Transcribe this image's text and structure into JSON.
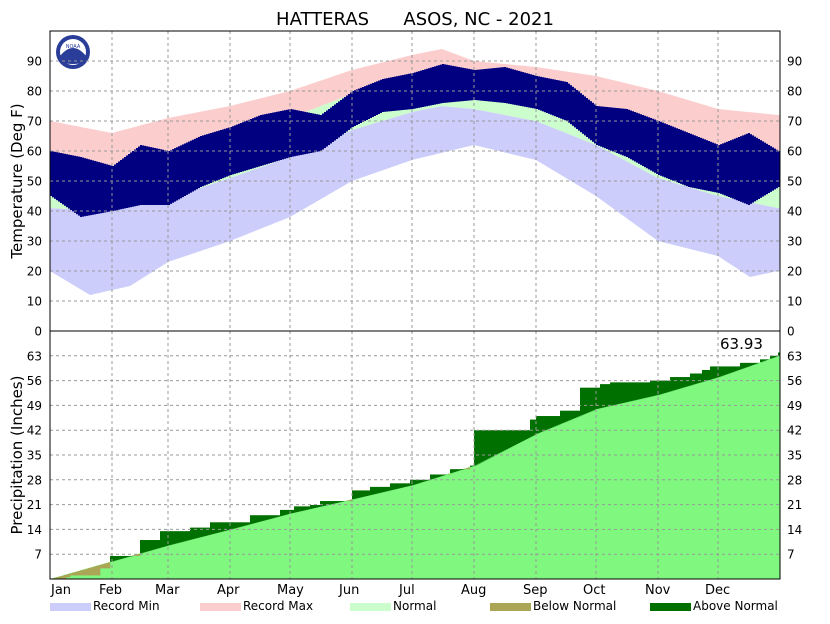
{
  "chart_data": {
    "type": "area",
    "title": "HATTERAS      ASOS, NC - 2021",
    "months": [
      "Jan",
      "Feb",
      "Mar",
      "Apr",
      "May",
      "Jun",
      "Jul",
      "Aug",
      "Sep",
      "Oct",
      "Nov",
      "Dec"
    ],
    "month_start_day": [
      0,
      31,
      59,
      90,
      120,
      151,
      181,
      212,
      243,
      273,
      304,
      334
    ],
    "days_in_year": 365,
    "temperature": {
      "ylabel": "Temperature (Deg F)",
      "ylim": [
        0,
        100
      ],
      "ticks": [
        0,
        10,
        20,
        30,
        40,
        50,
        60,
        70,
        80,
        90
      ],
      "grid": true,
      "record_max": {
        "day": [
          0,
          31,
          59,
          90,
          120,
          151,
          181,
          196,
          212,
          243,
          273,
          304,
          334,
          364
        ],
        "value": [
          70,
          66,
          71,
          75,
          80,
          87,
          92,
          94,
          90,
          88,
          85,
          80,
          74,
          72
        ]
      },
      "record_min": {
        "day": [
          0,
          20,
          40,
          59,
          90,
          120,
          151,
          181,
          212,
          243,
          273,
          304,
          334,
          350,
          364
        ],
        "value": [
          20,
          12,
          15,
          23,
          30,
          38,
          50,
          57,
          62,
          57,
          45,
          30,
          25,
          18,
          20
        ]
      },
      "normal_high": {
        "day": [
          0,
          31,
          59,
          90,
          120,
          151,
          181,
          196,
          212,
          243,
          273,
          304,
          334,
          364
        ],
        "value": [
          56,
          55,
          59,
          65,
          71,
          79,
          84,
          86,
          85,
          82,
          75,
          67,
          60,
          56
        ]
      },
      "normal_low": {
        "day": [
          0,
          31,
          59,
          90,
          120,
          151,
          181,
          196,
          212,
          243,
          273,
          304,
          334,
          364
        ],
        "value": [
          41,
          40,
          44,
          51,
          58,
          67,
          73,
          75,
          74,
          70,
          62,
          51,
          45,
          41
        ]
      },
      "observed_high": {
        "day": [
          0,
          15,
          31,
          45,
          59,
          75,
          90,
          105,
          120,
          135,
          151,
          166,
          181,
          196,
          212,
          227,
          243,
          258,
          273,
          288,
          304,
          319,
          334,
          349,
          364
        ],
        "value": [
          60,
          58,
          55,
          62,
          60,
          65,
          68,
          72,
          74,
          72,
          80,
          84,
          86,
          89,
          87,
          88,
          85,
          83,
          75,
          74,
          70,
          66,
          62,
          66,
          60
        ]
      },
      "observed_low": {
        "day": [
          0,
          15,
          31,
          45,
          59,
          75,
          90,
          105,
          120,
          135,
          151,
          166,
          181,
          196,
          212,
          227,
          243,
          258,
          273,
          288,
          304,
          319,
          334,
          349,
          364
        ],
        "value": [
          45,
          38,
          40,
          42,
          42,
          48,
          52,
          55,
          58,
          60,
          68,
          73,
          74,
          76,
          77,
          76,
          74,
          70,
          62,
          58,
          52,
          48,
          46,
          42,
          48
        ]
      }
    },
    "precipitation": {
      "ylabel": "Precipitation (Inches)",
      "ylim": [
        0,
        70
      ],
      "ticks": [
        7,
        14,
        21,
        28,
        35,
        42,
        49,
        56,
        63
      ],
      "total_label": "63.93",
      "normal_cumulative": {
        "day": [
          0,
          31,
          59,
          90,
          120,
          151,
          181,
          212,
          243,
          273,
          304,
          334,
          364
        ],
        "value": [
          0,
          5,
          9.5,
          14,
          18.5,
          22.5,
          26.5,
          32,
          41,
          48,
          52,
          57,
          63
        ]
      },
      "observed_cumulative": {
        "day": [
          0,
          4,
          8,
          10,
          25,
          30,
          45,
          55,
          70,
          80,
          100,
          115,
          122,
          130,
          135,
          151,
          160,
          170,
          180,
          190,
          200,
          210,
          212,
          240,
          243,
          255,
          265,
          275,
          280,
          300,
          310,
          320,
          326,
          330,
          345,
          355,
          360,
          364
        ],
        "value": [
          0,
          0,
          0.5,
          1,
          3,
          6.5,
          11,
          13.5,
          14.5,
          16,
          18,
          19.5,
          20.5,
          20.9,
          22,
          25,
          26,
          27,
          28,
          29.5,
          31,
          32,
          42,
          45,
          46,
          47.5,
          54,
          55,
          55.5,
          56,
          57,
          58,
          59,
          60,
          61,
          62,
          63,
          63.93
        ]
      }
    },
    "legend": [
      {
        "label": "Record Min",
        "color": "#cccdfa"
      },
      {
        "label": "Record Max",
        "color": "#fbcdcd"
      },
      {
        "label": "Normal",
        "color": "#ccfdcc"
      },
      {
        "label": "Below Normal",
        "color": "#aaa655"
      },
      {
        "label": "Above Normal",
        "color": "#007000"
      }
    ],
    "colors": {
      "observed": "#000080",
      "normal_precip_fill": "#80f880",
      "above_normal": "#007000",
      "below_normal": "#aaa655"
    }
  }
}
